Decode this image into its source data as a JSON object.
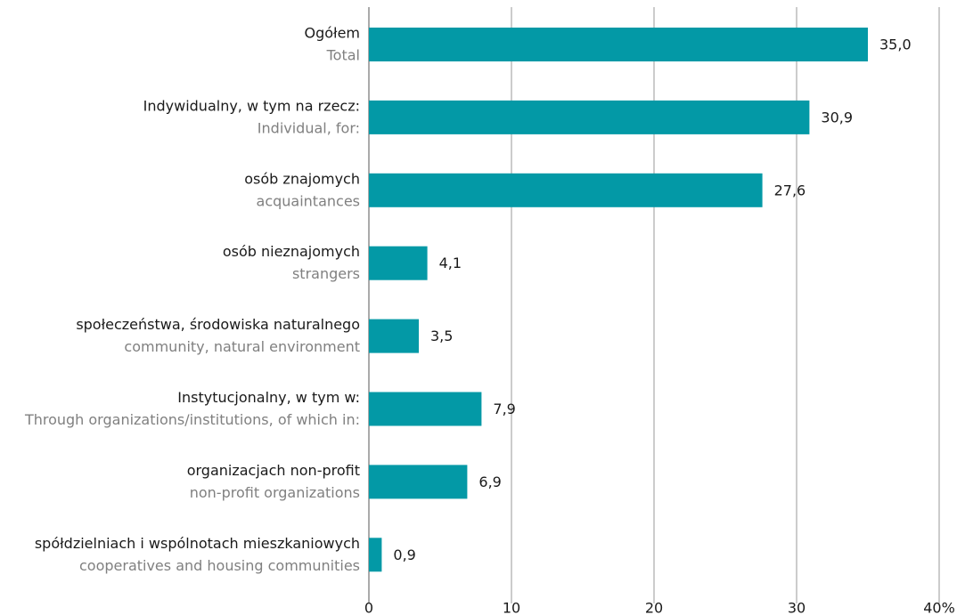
{
  "chart_data": {
    "type": "bar",
    "orientation": "horizontal",
    "categories": [
      "Ogółem",
      "Indywidualny, w tym na rzecz:",
      "osób znajomych",
      "osób nieznajomych",
      "społeczeństwa, środowiska naturalnego",
      "Instytucjonalny, w tym w:",
      "organizacjach non-profit",
      "spółdzielniach i wspólnotach mieszkaniowych"
    ],
    "subcategories": [
      "Total",
      "Individual, for:",
      "acquaintances",
      "strangers",
      "community, natural environment",
      "Through organizations/institutions, of which in:",
      "non-profit organizations",
      "cooperatives and housing communities"
    ],
    "values": [
      35.0,
      30.9,
      27.6,
      4.1,
      3.5,
      7.9,
      6.9,
      0.9
    ],
    "value_labels": [
      "35,0",
      "30,9",
      "27,6",
      "4,1",
      "3,5",
      "7,9",
      "6,9",
      "0,9"
    ],
    "color": "#0399a6",
    "xlim": [
      0,
      40
    ],
    "xticks": [
      0,
      10,
      20,
      30,
      {
        "value": 40,
        "label": "40%"
      }
    ],
    "grid": true
  }
}
